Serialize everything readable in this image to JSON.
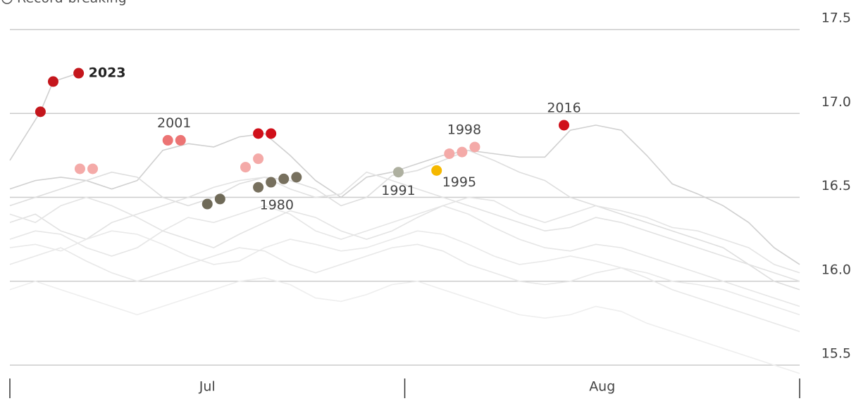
{
  "chart_data": {
    "type": "line",
    "legend_label": "Record-breaking",
    "xlim": [
      0,
      62
    ],
    "xticks": [
      0,
      31,
      62
    ],
    "month_labels": [
      "Jul",
      "Aug"
    ],
    "ylim": [
      15.5,
      17.5
    ],
    "yticks": [
      15.5,
      16.0,
      16.5,
      17.0,
      17.5
    ],
    "ytick_labels": [
      "15.5",
      "16.0",
      "16.5",
      "17.0",
      "17.5"
    ],
    "grid": true,
    "x": [
      0,
      2,
      4,
      6,
      8,
      10,
      12,
      14,
      16,
      18,
      20,
      22,
      24,
      26,
      28,
      30,
      32,
      34,
      36,
      38,
      40,
      42,
      44,
      46,
      48,
      50,
      52,
      54,
      56,
      58,
      60,
      62
    ],
    "series": [
      {
        "color": "#d0d0d0",
        "values": [
          16.55,
          16.6,
          16.62,
          16.6,
          16.55,
          16.6,
          16.78,
          16.82,
          16.8,
          16.86,
          16.88,
          16.75,
          16.6,
          16.5,
          16.62,
          16.65,
          16.7,
          16.75,
          16.78,
          16.76,
          16.74,
          16.74,
          16.9,
          16.93,
          16.9,
          16.75,
          16.58,
          16.52,
          16.45,
          16.35,
          16.2,
          16.1
        ]
      },
      {
        "color": "#dedede",
        "values": [
          16.45,
          16.5,
          16.55,
          16.6,
          16.65,
          16.62,
          16.5,
          16.45,
          16.5,
          16.58,
          16.62,
          16.6,
          16.55,
          16.45,
          16.5,
          16.63,
          16.66,
          16.72,
          16.78,
          16.72,
          16.65,
          16.6,
          16.5,
          16.45,
          16.4,
          16.35,
          16.3,
          16.25,
          16.2,
          16.1,
          16.0,
          15.95
        ]
      },
      {
        "color": "#e2e2e2",
        "values": [
          16.35,
          16.4,
          16.3,
          16.25,
          16.35,
          16.4,
          16.45,
          16.5,
          16.56,
          16.6,
          16.62,
          16.55,
          16.5,
          16.52,
          16.65,
          16.6,
          16.55,
          16.5,
          16.45,
          16.4,
          16.35,
          16.3,
          16.32,
          16.38,
          16.35,
          16.3,
          16.25,
          16.2,
          16.15,
          16.1,
          16.05,
          16.0
        ]
      },
      {
        "color": "#e6e6e6",
        "values": [
          16.25,
          16.3,
          16.28,
          16.2,
          16.15,
          16.2,
          16.3,
          16.38,
          16.35,
          16.4,
          16.45,
          16.4,
          16.3,
          16.25,
          16.3,
          16.35,
          16.4,
          16.45,
          16.4,
          16.32,
          16.25,
          16.2,
          16.18,
          16.22,
          16.2,
          16.15,
          16.1,
          16.05,
          16.0,
          15.95,
          15.9,
          15.85
        ]
      },
      {
        "color": "#e8e8e8",
        "values": [
          16.1,
          16.15,
          16.2,
          16.12,
          16.05,
          16.0,
          16.05,
          16.1,
          16.15,
          16.2,
          16.18,
          16.1,
          16.05,
          16.1,
          16.15,
          16.2,
          16.22,
          16.18,
          16.1,
          16.05,
          16.0,
          15.98,
          16.0,
          16.05,
          16.08,
          16.02,
          15.95,
          15.9,
          15.85,
          15.8,
          15.75,
          15.7
        ]
      },
      {
        "color": "#eeeeee",
        "values": [
          15.95,
          16.0,
          15.95,
          15.9,
          15.85,
          15.8,
          15.85,
          15.9,
          15.95,
          16.0,
          16.02,
          15.98,
          15.9,
          15.88,
          15.92,
          15.98,
          16.0,
          15.95,
          15.9,
          15.85,
          15.8,
          15.78,
          15.8,
          15.85,
          15.82,
          15.75,
          15.7,
          15.65,
          15.6,
          15.55,
          15.5,
          15.45
        ]
      },
      {
        "color": "#e4e4e4",
        "values": [
          16.4,
          16.35,
          16.45,
          16.5,
          16.45,
          16.38,
          16.3,
          16.25,
          16.2,
          16.28,
          16.35,
          16.42,
          16.38,
          16.3,
          16.25,
          16.3,
          16.38,
          16.45,
          16.5,
          16.48,
          16.4,
          16.35,
          16.4,
          16.45,
          16.42,
          16.38,
          16.32,
          16.3,
          16.25,
          16.2,
          16.1,
          16.05
        ]
      },
      {
        "color": "#e9e9e9",
        "values": [
          16.2,
          16.22,
          16.18,
          16.25,
          16.3,
          16.28,
          16.22,
          16.15,
          16.1,
          16.12,
          16.2,
          16.25,
          16.22,
          16.18,
          16.2,
          16.25,
          16.3,
          16.28,
          16.22,
          16.15,
          16.1,
          16.12,
          16.15,
          16.12,
          16.08,
          16.05,
          16.0,
          15.98,
          15.95,
          15.9,
          15.85,
          15.8
        ]
      },
      {
        "color": "#cfcfcf",
        "x": [
          0,
          2.4,
          3.4,
          5.4
        ],
        "values": [
          16.72,
          17.01,
          17.19,
          17.24
        ]
      }
    ],
    "markers": [
      {
        "label": "2023",
        "color": "#c4161c",
        "x": [
          2.4,
          3.4,
          5.4
        ],
        "values": [
          17.01,
          17.19,
          17.24
        ]
      },
      {
        "color": "#f4aaa8",
        "x": [
          5.5,
          6.5
        ],
        "values": [
          16.67,
          16.67
        ]
      },
      {
        "label": "2001",
        "color": "#ec7474",
        "x": [
          12.4,
          13.4
        ],
        "values": [
          16.84,
          16.84
        ]
      },
      {
        "color": "#d0101a",
        "x": [
          19.5,
          20.5
        ],
        "values": [
          16.88,
          16.88
        ]
      },
      {
        "color": "#f4aaa8",
        "x": [
          18.5,
          19.5
        ],
        "values": [
          16.68,
          16.73
        ]
      },
      {
        "color": "#6f6a58",
        "x": [
          15.5,
          16.5
        ],
        "values": [
          16.46,
          16.49
        ]
      },
      {
        "label": "1980",
        "color": "#77705e",
        "x": [
          19.5,
          20.5,
          21.5,
          22.5
        ],
        "values": [
          16.56,
          16.59,
          16.61,
          16.62
        ]
      },
      {
        "label": "1991",
        "color": "#aeb0a0",
        "x": [
          30.5
        ],
        "values": [
          16.65
        ]
      },
      {
        "label": "1995",
        "color": "#f5b800",
        "x": [
          33.5
        ],
        "values": [
          16.66
        ]
      },
      {
        "label": "1998",
        "color": "#f4aaa8",
        "x": [
          34.5,
          35.5,
          36.5
        ],
        "values": [
          16.76,
          16.77,
          16.8
        ]
      },
      {
        "label": "2016",
        "color": "#d0101a",
        "x": [
          43.5
        ],
        "values": [
          16.93
        ]
      }
    ]
  }
}
